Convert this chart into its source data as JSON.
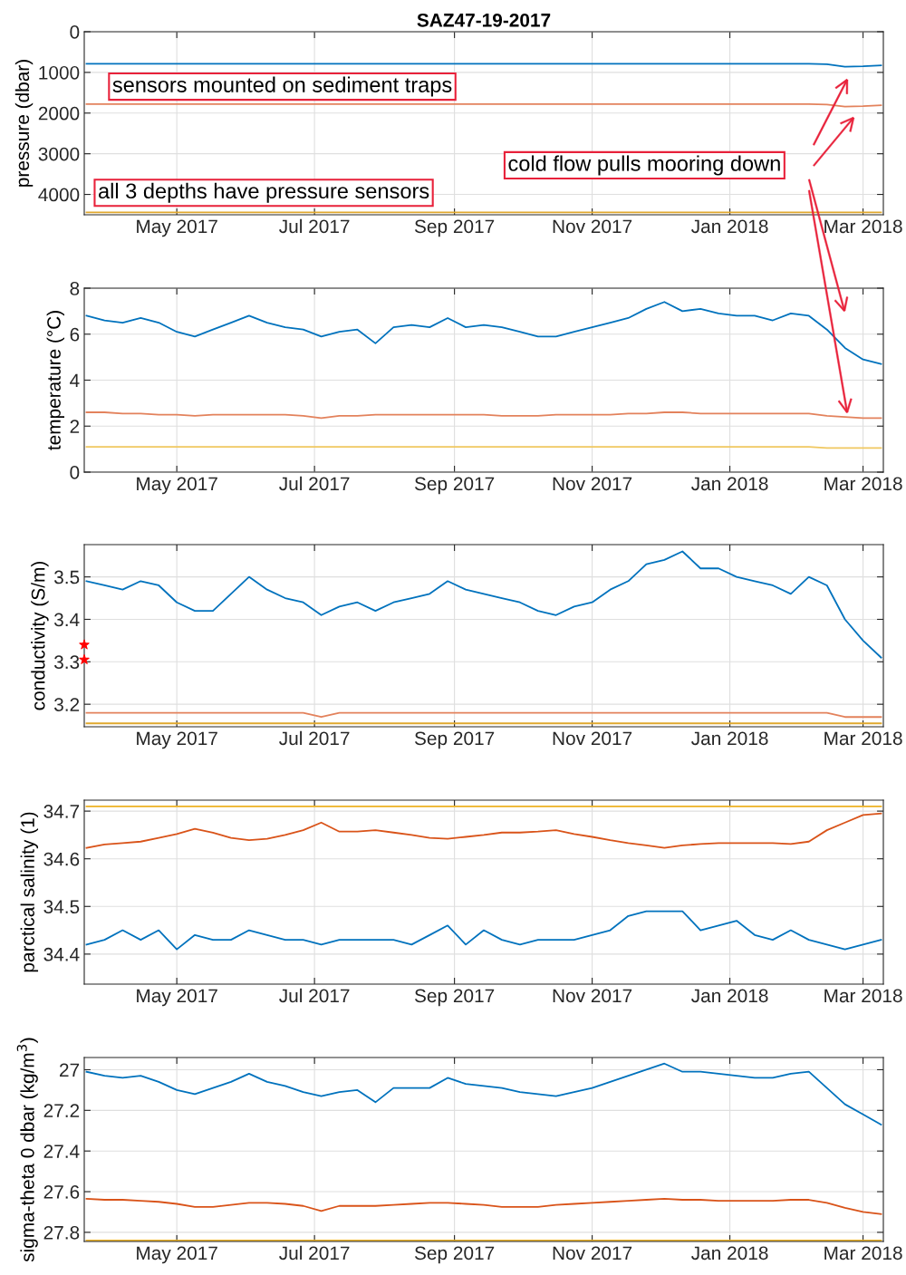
{
  "chart_data": [
    {
      "type": "line",
      "title": "SAZ47-19-2017",
      "ylabel": "pressure (dbar)",
      "grid": true,
      "x": [
        "2017-03-22",
        "2017-03-30",
        "2017-04-07",
        "2017-04-15",
        "2017-04-23",
        "2017-05-01",
        "2017-05-09",
        "2017-05-17",
        "2017-05-25",
        "2017-06-02",
        "2017-06-10",
        "2017-06-18",
        "2017-06-26",
        "2017-07-04",
        "2017-07-12",
        "2017-07-20",
        "2017-07-28",
        "2017-08-05",
        "2017-08-13",
        "2017-08-21",
        "2017-08-29",
        "2017-09-06",
        "2017-09-14",
        "2017-09-22",
        "2017-09-30",
        "2017-10-08",
        "2017-10-16",
        "2017-10-24",
        "2017-11-01",
        "2017-11-09",
        "2017-11-17",
        "2017-11-25",
        "2017-12-03",
        "2017-12-11",
        "2017-12-19",
        "2017-12-27",
        "2018-01-04",
        "2018-01-12",
        "2018-01-20",
        "2018-01-28",
        "2018-02-05",
        "2018-02-13",
        "2018-02-21",
        "2018-03-01",
        "2018-03-09"
      ],
      "xlim": [
        "2017-03-21",
        "2018-03-10"
      ],
      "xticks": [
        {
          "value": "2017-05-01",
          "label": "May 2017"
        },
        {
          "value": "2017-07-01",
          "label": "Jul 2017"
        },
        {
          "value": "2017-09-01",
          "label": "Sep 2017"
        },
        {
          "value": "2017-11-01",
          "label": "Nov 2017"
        },
        {
          "value": "2018-01-01",
          "label": "Jan 2018"
        },
        {
          "value": "2018-03-01",
          "label": "Mar 2018"
        }
      ],
      "ylim": [
        4500,
        0
      ],
      "yticks": [
        0,
        1000,
        2000,
        3000,
        4000
      ],
      "annotations": [
        "sensors mounted on sediment traps",
        "all 3 depths have pressure sensors",
        "cold flow pulls mooring down"
      ],
      "series": [
        {
          "color": "#0072bd",
          "values": [
            790,
            790,
            790,
            790,
            790,
            790,
            790,
            790,
            790,
            790,
            790,
            790,
            790,
            790,
            790,
            790,
            790,
            790,
            790,
            790,
            790,
            790,
            790,
            790,
            790,
            790,
            790,
            790,
            790,
            790,
            790,
            790,
            790,
            790,
            790,
            790,
            790,
            790,
            790,
            790,
            790,
            800,
            860,
            850,
            830
          ]
        },
        {
          "color": "#e3825c",
          "values": [
            1780,
            1780,
            1780,
            1780,
            1780,
            1780,
            1780,
            1780,
            1780,
            1780,
            1780,
            1780,
            1780,
            1780,
            1780,
            1780,
            1780,
            1780,
            1780,
            1780,
            1780,
            1780,
            1780,
            1780,
            1780,
            1780,
            1780,
            1780,
            1780,
            1780,
            1780,
            1780,
            1780,
            1780,
            1780,
            1780,
            1780,
            1780,
            1780,
            1780,
            1780,
            1790,
            1840,
            1830,
            1810
          ]
        },
        {
          "color": "#e0a82e",
          "values": [
            4440,
            4440,
            4440,
            4440,
            4440,
            4440,
            4440,
            4440,
            4440,
            4440,
            4440,
            4440,
            4440,
            4440,
            4440,
            4440,
            4440,
            4440,
            4440,
            4440,
            4440,
            4440,
            4440,
            4440,
            4440,
            4440,
            4440,
            4440,
            4440,
            4440,
            4440,
            4440,
            4440,
            4440,
            4440,
            4440,
            4440,
            4440,
            4440,
            4440,
            4440,
            4440,
            4440,
            4440,
            4440
          ]
        }
      ]
    },
    {
      "type": "line",
      "ylabel": "temperature (°C)",
      "grid": true,
      "x": [
        "2017-03-22",
        "2017-03-30",
        "2017-04-07",
        "2017-04-15",
        "2017-04-23",
        "2017-05-01",
        "2017-05-09",
        "2017-05-17",
        "2017-05-25",
        "2017-06-02",
        "2017-06-10",
        "2017-06-18",
        "2017-06-26",
        "2017-07-04",
        "2017-07-12",
        "2017-07-20",
        "2017-07-28",
        "2017-08-05",
        "2017-08-13",
        "2017-08-21",
        "2017-08-29",
        "2017-09-06",
        "2017-09-14",
        "2017-09-22",
        "2017-09-30",
        "2017-10-08",
        "2017-10-16",
        "2017-10-24",
        "2017-11-01",
        "2017-11-09",
        "2017-11-17",
        "2017-11-25",
        "2017-12-03",
        "2017-12-11",
        "2017-12-19",
        "2017-12-27",
        "2018-01-04",
        "2018-01-12",
        "2018-01-20",
        "2018-01-28",
        "2018-02-05",
        "2018-02-13",
        "2018-02-21",
        "2018-03-01",
        "2018-03-09"
      ],
      "xlim": [
        "2017-03-21",
        "2018-03-10"
      ],
      "xticks": [
        {
          "value": "2017-05-01",
          "label": "May 2017"
        },
        {
          "value": "2017-07-01",
          "label": "Jul 2017"
        },
        {
          "value": "2017-09-01",
          "label": "Sep 2017"
        },
        {
          "value": "2017-11-01",
          "label": "Nov 2017"
        },
        {
          "value": "2018-01-01",
          "label": "Jan 2018"
        },
        {
          "value": "2018-03-01",
          "label": "Mar 2018"
        }
      ],
      "ylim": [
        0,
        8
      ],
      "yticks": [
        0,
        2,
        4,
        6,
        8
      ],
      "series": [
        {
          "color": "#0072bd",
          "values": [
            6.8,
            6.6,
            6.5,
            6.7,
            6.5,
            6.1,
            5.9,
            6.2,
            6.5,
            6.8,
            6.5,
            6.3,
            6.2,
            5.9,
            6.1,
            6.2,
            5.6,
            6.3,
            6.4,
            6.3,
            6.7,
            6.3,
            6.4,
            6.3,
            6.1,
            5.9,
            5.9,
            6.1,
            6.3,
            6.5,
            6.7,
            7.1,
            7.4,
            7.0,
            7.1,
            6.9,
            6.8,
            6.8,
            6.6,
            6.9,
            6.8,
            6.2,
            5.4,
            4.9,
            4.7
          ]
        },
        {
          "color": "#e3825c",
          "values": [
            2.6,
            2.6,
            2.55,
            2.55,
            2.5,
            2.5,
            2.45,
            2.5,
            2.5,
            2.5,
            2.5,
            2.5,
            2.45,
            2.35,
            2.45,
            2.45,
            2.5,
            2.5,
            2.5,
            2.5,
            2.5,
            2.5,
            2.5,
            2.45,
            2.45,
            2.45,
            2.5,
            2.5,
            2.5,
            2.5,
            2.55,
            2.55,
            2.6,
            2.6,
            2.55,
            2.55,
            2.55,
            2.55,
            2.55,
            2.55,
            2.55,
            2.45,
            2.4,
            2.35,
            2.35
          ]
        },
        {
          "color": "#f0c860",
          "values": [
            1.1,
            1.1,
            1.1,
            1.1,
            1.1,
            1.1,
            1.1,
            1.1,
            1.1,
            1.1,
            1.1,
            1.1,
            1.1,
            1.1,
            1.1,
            1.1,
            1.1,
            1.1,
            1.1,
            1.1,
            1.1,
            1.1,
            1.1,
            1.1,
            1.1,
            1.1,
            1.1,
            1.1,
            1.1,
            1.1,
            1.1,
            1.1,
            1.1,
            1.1,
            1.1,
            1.1,
            1.1,
            1.1,
            1.1,
            1.1,
            1.1,
            1.05,
            1.05,
            1.05,
            1.05
          ]
        }
      ]
    },
    {
      "type": "line",
      "ylabel": "conductivity (S/m)",
      "grid": true,
      "x": [
        "2017-03-22",
        "2017-03-30",
        "2017-04-07",
        "2017-04-15",
        "2017-04-23",
        "2017-05-01",
        "2017-05-09",
        "2017-05-17",
        "2017-05-25",
        "2017-06-02",
        "2017-06-10",
        "2017-06-18",
        "2017-06-26",
        "2017-07-04",
        "2017-07-12",
        "2017-07-20",
        "2017-07-28",
        "2017-08-05",
        "2017-08-13",
        "2017-08-21",
        "2017-08-29",
        "2017-09-06",
        "2017-09-14",
        "2017-09-22",
        "2017-09-30",
        "2017-10-08",
        "2017-10-16",
        "2017-10-24",
        "2017-11-01",
        "2017-11-09",
        "2017-11-17",
        "2017-11-25",
        "2017-12-03",
        "2017-12-11",
        "2017-12-19",
        "2017-12-27",
        "2018-01-04",
        "2018-01-12",
        "2018-01-20",
        "2018-01-28",
        "2018-02-05",
        "2018-02-13",
        "2018-02-21",
        "2018-03-01",
        "2018-03-09"
      ],
      "xlim": [
        "2017-03-21",
        "2018-03-10"
      ],
      "xticks": [
        {
          "value": "2017-05-01",
          "label": "May 2017"
        },
        {
          "value": "2017-07-01",
          "label": "Jul 2017"
        },
        {
          "value": "2017-09-01",
          "label": "Sep 2017"
        },
        {
          "value": "2017-11-01",
          "label": "Nov 2017"
        },
        {
          "value": "2018-01-01",
          "label": "Jan 2018"
        },
        {
          "value": "2018-03-01",
          "label": "Mar 2018"
        }
      ],
      "ylim": [
        3.147,
        3.576
      ],
      "yticks": [
        3.2,
        3.3,
        3.4,
        3.5
      ],
      "series": [
        {
          "color": "#0072bd",
          "values": [
            3.49,
            3.48,
            3.47,
            3.49,
            3.48,
            3.44,
            3.42,
            3.42,
            3.46,
            3.5,
            3.47,
            3.45,
            3.44,
            3.41,
            3.43,
            3.44,
            3.42,
            3.44,
            3.45,
            3.46,
            3.49,
            3.47,
            3.46,
            3.45,
            3.44,
            3.42,
            3.41,
            3.43,
            3.44,
            3.47,
            3.49,
            3.53,
            3.54,
            3.56,
            3.52,
            3.52,
            3.5,
            3.49,
            3.48,
            3.46,
            3.5,
            3.48,
            3.4,
            3.35,
            3.31
          ]
        },
        {
          "color": "#e3825c",
          "values": [
            3.18,
            3.18,
            3.18,
            3.18,
            3.18,
            3.18,
            3.18,
            3.18,
            3.18,
            3.18,
            3.18,
            3.18,
            3.18,
            3.17,
            3.18,
            3.18,
            3.18,
            3.18,
            3.18,
            3.18,
            3.18,
            3.18,
            3.18,
            3.18,
            3.18,
            3.18,
            3.18,
            3.18,
            3.18,
            3.18,
            3.18,
            3.18,
            3.18,
            3.18,
            3.18,
            3.18,
            3.18,
            3.18,
            3.18,
            3.18,
            3.18,
            3.18,
            3.17,
            3.17,
            3.17
          ]
        },
        {
          "color": "#e0a82e",
          "values": [
            3.155,
            3.155,
            3.155,
            3.155,
            3.155,
            3.155,
            3.155,
            3.155,
            3.155,
            3.155,
            3.155,
            3.155,
            3.155,
            3.155,
            3.155,
            3.155,
            3.155,
            3.155,
            3.155,
            3.155,
            3.155,
            3.155,
            3.155,
            3.155,
            3.155,
            3.155,
            3.155,
            3.155,
            3.155,
            3.155,
            3.155,
            3.155,
            3.155,
            3.155,
            3.155,
            3.155,
            3.155,
            3.155,
            3.155,
            3.155,
            3.155,
            3.155,
            3.155,
            3.155,
            3.155
          ]
        },
        {
          "type": "scatter",
          "marker": "star",
          "color": "#ff0000",
          "x": [
            "2017-03-21",
            "2017-03-21"
          ],
          "values": [
            3.34,
            3.305
          ]
        }
      ]
    },
    {
      "type": "line",
      "ylabel": "parctical salinity (1)",
      "grid": true,
      "x": [
        "2017-03-22",
        "2017-03-30",
        "2017-04-07",
        "2017-04-15",
        "2017-04-23",
        "2017-05-01",
        "2017-05-09",
        "2017-05-17",
        "2017-05-25",
        "2017-06-02",
        "2017-06-10",
        "2017-06-18",
        "2017-06-26",
        "2017-07-04",
        "2017-07-12",
        "2017-07-20",
        "2017-07-28",
        "2017-08-05",
        "2017-08-13",
        "2017-08-21",
        "2017-08-29",
        "2017-09-06",
        "2017-09-14",
        "2017-09-22",
        "2017-09-30",
        "2017-10-08",
        "2017-10-16",
        "2017-10-24",
        "2017-11-01",
        "2017-11-09",
        "2017-11-17",
        "2017-11-25",
        "2017-12-03",
        "2017-12-11",
        "2017-12-19",
        "2017-12-27",
        "2018-01-04",
        "2018-01-12",
        "2018-01-20",
        "2018-01-28",
        "2018-02-05",
        "2018-02-13",
        "2018-02-21",
        "2018-03-01",
        "2018-03-09"
      ],
      "xlim": [
        "2017-03-21",
        "2018-03-10"
      ],
      "xticks": [
        {
          "value": "2017-05-01",
          "label": "May 2017"
        },
        {
          "value": "2017-07-01",
          "label": "Jul 2017"
        },
        {
          "value": "2017-09-01",
          "label": "Sep 2017"
        },
        {
          "value": "2017-11-01",
          "label": "Nov 2017"
        },
        {
          "value": "2018-01-01",
          "label": "Jan 2018"
        },
        {
          "value": "2018-03-01",
          "label": "Mar 2018"
        }
      ],
      "ylim": [
        34.337,
        34.723
      ],
      "yticks": [
        34.4,
        34.5,
        34.6,
        34.7
      ],
      "series": [
        {
          "color": "#0072bd",
          "values": [
            34.42,
            34.43,
            34.45,
            34.43,
            34.45,
            34.41,
            34.44,
            34.43,
            34.43,
            34.45,
            34.44,
            34.43,
            34.43,
            34.42,
            34.43,
            34.43,
            34.43,
            34.43,
            34.42,
            34.44,
            34.46,
            34.42,
            34.45,
            34.43,
            34.42,
            34.43,
            34.43,
            34.43,
            34.44,
            34.45,
            34.48,
            34.49,
            34.49,
            34.49,
            34.45,
            34.46,
            34.47,
            34.44,
            34.43,
            34.45,
            34.43,
            34.42,
            34.41,
            34.42,
            34.43
          ]
        },
        {
          "color": "#d95319",
          "values": [
            34.623,
            34.63,
            34.633,
            34.636,
            34.644,
            34.652,
            34.663,
            34.655,
            34.644,
            34.639,
            34.642,
            34.65,
            34.66,
            34.676,
            34.657,
            34.657,
            34.66,
            34.655,
            34.65,
            34.644,
            34.642,
            34.646,
            34.65,
            34.655,
            34.655,
            34.657,
            34.66,
            34.652,
            34.646,
            34.639,
            34.633,
            34.628,
            34.623,
            34.628,
            34.631,
            34.633,
            34.633,
            34.633,
            34.633,
            34.631,
            34.636,
            34.66,
            34.676,
            34.692,
            34.695
          ]
        },
        {
          "color": "#edb120",
          "values": [
            34.71,
            34.71,
            34.71,
            34.71,
            34.71,
            34.71,
            34.71,
            34.71,
            34.71,
            34.71,
            34.71,
            34.71,
            34.71,
            34.71,
            34.71,
            34.71,
            34.71,
            34.71,
            34.71,
            34.71,
            34.71,
            34.71,
            34.71,
            34.71,
            34.71,
            34.71,
            34.71,
            34.71,
            34.71,
            34.71,
            34.71,
            34.71,
            34.71,
            34.71,
            34.71,
            34.71,
            34.71,
            34.71,
            34.71,
            34.71,
            34.71,
            34.71,
            34.71,
            34.71,
            34.71
          ]
        }
      ]
    },
    {
      "type": "line",
      "ylabel": "sigma-theta 0 dbar (kg/m$^{3}$)",
      "grid": true,
      "x": [
        "2017-03-22",
        "2017-03-30",
        "2017-04-07",
        "2017-04-15",
        "2017-04-23",
        "2017-05-01",
        "2017-05-09",
        "2017-05-17",
        "2017-05-25",
        "2017-06-02",
        "2017-06-10",
        "2017-06-18",
        "2017-06-26",
        "2017-07-04",
        "2017-07-12",
        "2017-07-20",
        "2017-07-28",
        "2017-08-05",
        "2017-08-13",
        "2017-08-21",
        "2017-08-29",
        "2017-09-06",
        "2017-09-14",
        "2017-09-22",
        "2017-09-30",
        "2017-10-08",
        "2017-10-16",
        "2017-10-24",
        "2017-11-01",
        "2017-11-09",
        "2017-11-17",
        "2017-11-25",
        "2017-12-03",
        "2017-12-11",
        "2017-12-19",
        "2017-12-27",
        "2018-01-04",
        "2018-01-12",
        "2018-01-20",
        "2018-01-28",
        "2018-02-05",
        "2018-02-13",
        "2018-02-21",
        "2018-03-01",
        "2018-03-09"
      ],
      "xlim": [
        "2017-03-21",
        "2018-03-10"
      ],
      "xticks": [
        {
          "value": "2017-05-01",
          "label": "May 2017"
        },
        {
          "value": "2017-07-01",
          "label": "Jul 2017"
        },
        {
          "value": "2017-09-01",
          "label": "Sep 2017"
        },
        {
          "value": "2017-11-01",
          "label": "Nov 2017"
        },
        {
          "value": "2018-01-01",
          "label": "Jan 2018"
        },
        {
          "value": "2018-03-01",
          "label": "Mar 2018"
        }
      ],
      "ylim": [
        27.845,
        26.94
      ],
      "yticks": [
        27,
        27.2,
        27.4,
        27.6,
        27.8
      ],
      "series": [
        {
          "color": "#0072bd",
          "values": [
            27.01,
            27.03,
            27.04,
            27.03,
            27.06,
            27.1,
            27.12,
            27.09,
            27.06,
            27.02,
            27.06,
            27.08,
            27.11,
            27.13,
            27.11,
            27.1,
            27.16,
            27.09,
            27.09,
            27.09,
            27.04,
            27.07,
            27.08,
            27.09,
            27.11,
            27.12,
            27.13,
            27.11,
            27.09,
            27.06,
            27.03,
            27.0,
            26.97,
            27.01,
            27.01,
            27.02,
            27.03,
            27.04,
            27.04,
            27.02,
            27.01,
            27.09,
            27.17,
            27.22,
            27.27
          ]
        },
        {
          "color": "#d95319",
          "values": [
            27.635,
            27.64,
            27.64,
            27.645,
            27.65,
            27.66,
            27.675,
            27.675,
            27.665,
            27.655,
            27.655,
            27.66,
            27.67,
            27.695,
            27.67,
            27.67,
            27.67,
            27.665,
            27.66,
            27.655,
            27.655,
            27.66,
            27.665,
            27.675,
            27.675,
            27.675,
            27.665,
            27.66,
            27.655,
            27.65,
            27.645,
            27.64,
            27.635,
            27.64,
            27.64,
            27.645,
            27.645,
            27.645,
            27.645,
            27.64,
            27.64,
            27.655,
            27.68,
            27.7,
            27.71
          ]
        },
        {
          "color": "#edb120",
          "values": [
            27.84,
            27.84,
            27.84,
            27.84,
            27.84,
            27.84,
            27.84,
            27.84,
            27.84,
            27.84,
            27.84,
            27.84,
            27.84,
            27.84,
            27.84,
            27.84,
            27.84,
            27.84,
            27.84,
            27.84,
            27.84,
            27.84,
            27.84,
            27.84,
            27.84,
            27.84,
            27.84,
            27.84,
            27.84,
            27.84,
            27.84,
            27.84,
            27.84,
            27.84,
            27.84,
            27.84,
            27.84,
            27.84,
            27.84,
            27.84,
            27.84,
            27.84,
            27.84,
            27.84,
            27.84
          ]
        }
      ]
    }
  ]
}
